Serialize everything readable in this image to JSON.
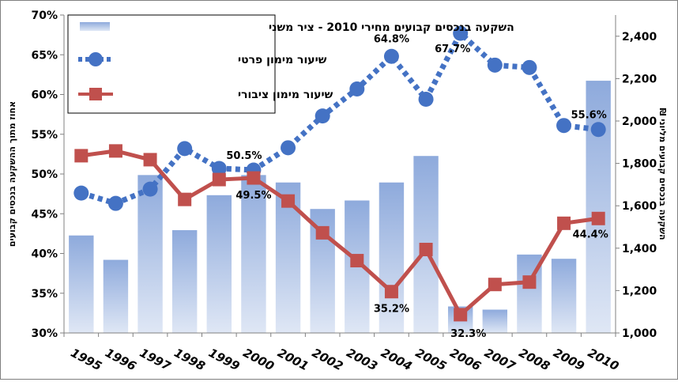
{
  "chart_data": {
    "type": "bar",
    "categories": [
      "1995",
      "1996",
      "1997",
      "1998",
      "1999",
      "2000",
      "2001",
      "2002",
      "2003",
      "2004",
      "2005",
      "2006",
      "2007",
      "2008",
      "2009",
      "2010"
    ],
    "series": [
      {
        "name": "השקעה בנכסים קבועים מחירי 2010 - ציר משני",
        "kind": "bar",
        "axis": "right",
        "values": [
          1460,
          1345,
          1745,
          1485,
          1650,
          1745,
          1710,
          1585,
          1625,
          1710,
          1835,
          1125,
          1110,
          1370,
          1350,
          2190
        ],
        "color": "#8eaadc"
      },
      {
        "name": "שיעור מימון פרטי",
        "kind": "line",
        "axis": "left",
        "style": "dotted",
        "values": [
          47.6,
          46.3,
          48.1,
          53.2,
          50.7,
          50.5,
          53.3,
          57.3,
          60.7,
          64.8,
          59.4,
          67.7,
          63.7,
          63.4,
          56.1,
          55.6
        ],
        "color": "#4472c4"
      },
      {
        "name": "שיעור מימון ציבורי",
        "kind": "line",
        "axis": "left",
        "style": "solid",
        "values": [
          52.3,
          52.9,
          51.8,
          46.8,
          49.3,
          49.5,
          46.6,
          42.6,
          39.1,
          35.2,
          40.5,
          32.3,
          36.1,
          36.4,
          43.8,
          44.4
        ],
        "color": "#c0504d"
      }
    ],
    "data_labels": [
      {
        "series": 1,
        "index": 5,
        "text": "50.5%",
        "pos": "above-left"
      },
      {
        "series": 1,
        "index": 9,
        "text": "64.8%",
        "pos": "above"
      },
      {
        "series": 1,
        "index": 11,
        "text": "67.7%",
        "pos": "below-left"
      },
      {
        "series": 1,
        "index": 15,
        "text": "55.6%",
        "pos": "above-left"
      },
      {
        "series": 2,
        "index": 5,
        "text": "49.5%",
        "pos": "below"
      },
      {
        "series": 2,
        "index": 9,
        "text": "35.2%",
        "pos": "below"
      },
      {
        "series": 2,
        "index": 11,
        "text": "32.3%",
        "pos": "below-right"
      },
      {
        "series": 2,
        "index": 15,
        "text": "44.4%",
        "pos": "below-left"
      }
    ],
    "ylabel_left": "אחוז מתוך ההשקעה בנכסים קבועים",
    "ylabel_right": "השקעה בנכסים קבועים מליוני ₪",
    "ylim_left": [
      30,
      70
    ],
    "yticks_left": [
      30,
      35,
      40,
      45,
      50,
      55,
      60,
      65,
      70
    ],
    "ylim_right": [
      1000,
      2500
    ],
    "yticks_right": [
      1000,
      1200,
      1400,
      1600,
      1800,
      2000,
      2200,
      2400
    ],
    "grid": false,
    "legend": "top-left"
  }
}
